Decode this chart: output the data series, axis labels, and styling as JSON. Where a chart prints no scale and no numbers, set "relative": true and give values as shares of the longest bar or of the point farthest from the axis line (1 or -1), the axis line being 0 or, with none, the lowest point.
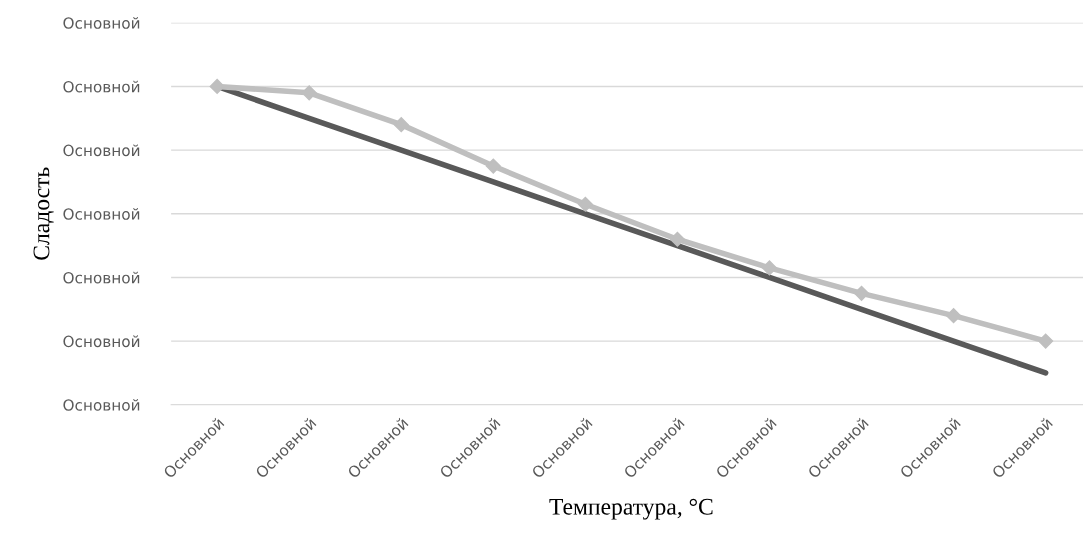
{
  "chart_data": {
    "type": "line",
    "xlabel": "Температура, °C",
    "ylabel": "Сладость",
    "relative": true,
    "categories": [
      "Основной",
      "Основной",
      "Основной",
      "Основной",
      "Основной",
      "Основной",
      "Основной",
      "Основной",
      "Основной",
      "Основной"
    ],
    "series": [
      {
        "color": "#595959",
        "values": [
          1.0,
          0.9,
          0.8,
          0.7,
          0.6,
          0.5,
          0.4,
          0.3,
          0.2,
          0.1
        ],
        "marker": "none"
      },
      {
        "color": "#bfbfbf",
        "values": [
          1.0,
          0.98,
          0.88,
          0.75,
          0.63,
          0.52,
          0.43,
          0.35,
          0.28,
          0.2
        ],
        "marker": "diamond"
      }
    ],
    "annotations": [
      "Основной",
      "Основной",
      "Основной",
      "Основной",
      "Основной",
      "Основной",
      "Основной"
    ],
    "grid": "y",
    "line_style": "solid"
  }
}
